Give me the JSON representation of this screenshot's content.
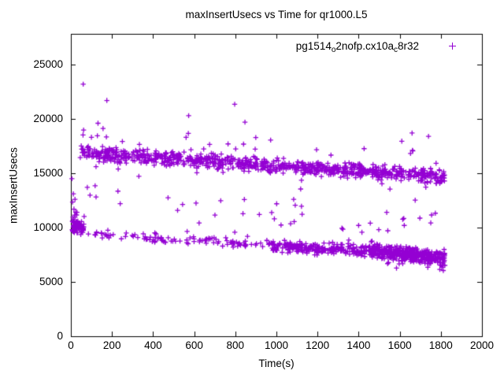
{
  "figure": {
    "title": "maxInsertUsecs vs Time for qr1000.L5",
    "background_color": "#ffffff",
    "border_color": "#000000"
  },
  "axes": {
    "x_label": "Time(s)",
    "y_label": "maxInsertUsecs",
    "x_tick_labels": [
      "0",
      "200",
      "400",
      "600",
      "800",
      "1000",
      "1200",
      "1400",
      "1600",
      "1800",
      "2000"
    ],
    "y_tick_labels": [
      "0",
      "5000",
      "10000",
      "15000",
      "20000",
      "25000"
    ]
  },
  "legend": {
    "position": "top-right-inside",
    "entries": [
      {
        "label_plain": "pg1514_o2nofp.cx10a_c8r32",
        "label_parts": {
          "p1": "pg1514",
          "s1": "o",
          "p2": "2nofp.cx10a",
          "s2": "c",
          "p3": "8r32"
        },
        "marker": "plus",
        "color": "#9400D3"
      }
    ]
  },
  "chart_data": {
    "type": "scatter",
    "title": "maxInsertUsecs vs Time for qr1000.L5",
    "xlabel": "Time(s)",
    "ylabel": "maxInsertUsecs",
    "xlim": [
      0,
      2000
    ],
    "ylim": [
      0,
      27826
    ],
    "xticks": [
      0,
      200,
      400,
      600,
      800,
      1000,
      1200,
      1400,
      1600,
      1800,
      2000
    ],
    "yticks": [
      0,
      5000,
      10000,
      15000,
      20000,
      25000
    ],
    "grid": false,
    "legend_position": "top-right-inside",
    "series": [
      {
        "name": "pg1514_o2nofp.cx10a_c8r32",
        "marker": "plus",
        "color": "#9400D3",
        "description": "Two dense declining bands of max-insert latency samples vs elapsed time; upper band ~17000 usecs falling to ~14600, lower band ~10300 falling to ~7200, with sparse outliers between and above the bands. Data spans t=0..1820 s.",
        "point_clusters": [
          {
            "name": "upper-band",
            "count": 950,
            "t_range": [
              45,
              1818
            ],
            "sigma": 310,
            "trend": [
              [
                45,
                16950
              ],
              [
                150,
                16750
              ],
              [
                400,
                16450
              ],
              [
                700,
                16100
              ],
              [
                1000,
                15700
              ],
              [
                1300,
                15300
              ],
              [
                1600,
                15000
              ],
              [
                1818,
                14600
              ]
            ],
            "up_tail": {
              "prob": 0.05,
              "max": 2500
            },
            "down_tail": {
              "prob": 0.015,
              "max": 1500
            }
          },
          {
            "name": "lower-start-cluster",
            "count": 70,
            "t_range": [
              4,
              65
            ],
            "sigma": 430,
            "trend": [
              [
                4,
                10350
              ],
              [
                65,
                9900
              ]
            ],
            "up_tail": {
              "prob": 0.06,
              "max": 1000
            },
            "down_tail": {
              "prob": 0.02,
              "max": 350
            }
          },
          {
            "name": "lower-sparse",
            "count": 105,
            "t_range": [
              65,
              950
            ],
            "sigma": 220,
            "trend": [
              [
                65,
                9650
              ],
              [
                300,
                9150
              ],
              [
                600,
                8750
              ],
              [
                950,
                8400
              ]
            ],
            "up_tail": {
              "prob": 0.05,
              "max": 800
            },
            "down_tail": {
              "prob": 0.02,
              "max": 400
            }
          },
          {
            "name": "lower-mid",
            "count": 240,
            "t_range": [
              950,
              1450
            ],
            "sigma": 250,
            "trend": [
              [
                950,
                8400
              ],
              [
                1200,
                8050
              ],
              [
                1450,
                7800
              ]
            ],
            "up_tail": {
              "prob": 0.04,
              "max": 800
            },
            "down_tail": {
              "prob": 0.02,
              "max": 450
            }
          },
          {
            "name": "lower-dense-end",
            "count": 430,
            "t_range": [
              1450,
              1820
            ],
            "sigma": 290,
            "trend": [
              [
                1450,
                7800
              ],
              [
                1650,
                7550
              ],
              [
                1820,
                7150
              ]
            ],
            "up_tail": {
              "prob": 0.03,
              "max": 800
            },
            "down_tail": {
              "prob": 0.05,
              "max": 1000
            }
          },
          {
            "name": "between-band-scatter",
            "count": 26,
            "t_range": [
              60,
              1810
            ],
            "sigma": 950,
            "trend": [
              [
                60,
                12000
              ],
              [
                1810,
                10300
              ]
            ],
            "up_tail": {
              "prob": 0.1,
              "max": 1500
            },
            "down_tail": {
              "prob": 0.1,
              "max": 800
            }
          }
        ],
        "notable_points": [
          [
            60,
            23200
          ],
          [
            175,
            21700
          ],
          [
            797,
            21350
          ],
          [
            573,
            20300
          ],
          [
            132,
            19600
          ],
          [
            847,
            19700
          ],
          [
            1660,
            18700
          ],
          [
            1610,
            17950
          ],
          [
            1740,
            18400
          ],
          [
            5,
            14500
          ],
          [
            8,
            12350
          ],
          [
            12,
            13100
          ],
          [
            15,
            11700
          ],
          [
            20,
            12600
          ],
          [
            30,
            11400
          ],
          [
            80,
            13700
          ],
          [
            118,
            13850
          ],
          [
            229,
            13350
          ],
          [
            240,
            12200
          ],
          [
            609,
            12250
          ],
          [
            701,
            11150
          ],
          [
            624,
            10420
          ],
          [
            977,
            11380
          ],
          [
            990,
            10800
          ],
          [
            1084,
            12600
          ],
          [
            1118,
            13550
          ],
          [
            1122,
            14350
          ],
          [
            1122,
            11960
          ],
          [
            1125,
            11230
          ],
          [
            1069,
            10360
          ],
          [
            1400,
            10200
          ],
          [
            1416,
            9570
          ],
          [
            1542,
            9710
          ],
          [
            1622,
            10200
          ],
          [
            1698,
            10870
          ],
          [
            1755,
            11160
          ],
          [
            1751,
            10430
          ],
          [
            1795,
            6150
          ],
          [
            1805,
            6350
          ],
          [
            1812,
            6050
          ]
        ]
      }
    ]
  }
}
